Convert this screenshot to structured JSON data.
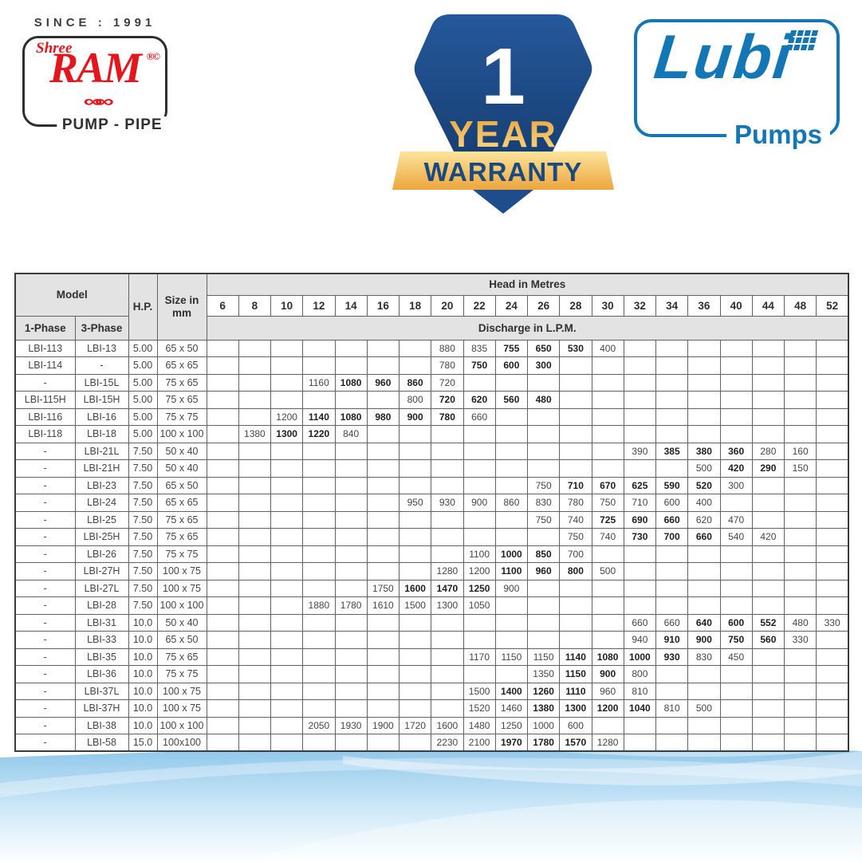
{
  "branding": {
    "since_label": "SINCE : 1991",
    "shree": "Shree",
    "ram": "RAM",
    "rc_marks": "®©",
    "pump_pipe": "PUMP - PIPE",
    "lubi": "Lubi",
    "pumps": "Pumps",
    "warranty_number": "1",
    "warranty_year": "YEAR",
    "warranty_label": "WARRANTY",
    "colors": {
      "ram_red": "#e4151d",
      "lubi_blue": "#1377b5",
      "badge_blue": "#1d4d8c",
      "gold_light": "#fbdd92",
      "gold_dark": "#eda53c",
      "warranty_text": "#1b4a7e"
    }
  },
  "table": {
    "headers": {
      "model": "Model",
      "phase1": "1-Phase",
      "phase3": "3-Phase",
      "hp": "H.P.",
      "size": "Size in mm",
      "head": "Head in Metres",
      "discharge": "Discharge in L.P.M."
    },
    "head_columns": [
      6,
      8,
      10,
      12,
      14,
      16,
      18,
      20,
      22,
      24,
      26,
      28,
      30,
      32,
      34,
      36,
      40,
      44,
      48,
      52
    ],
    "rows": [
      {
        "p1": "LBI-113",
        "p3": "LBI-13",
        "hp": "5.00",
        "size": "65 x 50",
        "d": [
          [
            20,
            "880",
            0
          ],
          [
            22,
            "835",
            0
          ],
          [
            24,
            "755",
            1
          ],
          [
            26,
            "650",
            1
          ],
          [
            28,
            "530",
            1
          ],
          [
            30,
            "400",
            0
          ]
        ]
      },
      {
        "p1": "LBI-114",
        "p3": "-",
        "hp": "5.00",
        "size": "65 x 65",
        "d": [
          [
            20,
            "780",
            0
          ],
          [
            22,
            "750",
            1
          ],
          [
            24,
            "600",
            1
          ],
          [
            26,
            "300",
            1
          ]
        ]
      },
      {
        "p1": "-",
        "p3": "LBI-15L",
        "hp": "5.00",
        "size": "75 x 65",
        "d": [
          [
            12,
            "1160",
            0
          ],
          [
            14,
            "1080",
            1
          ],
          [
            16,
            "960",
            1
          ],
          [
            18,
            "860",
            1
          ],
          [
            20,
            "720",
            0
          ]
        ]
      },
      {
        "p1": "LBI-115H",
        "p3": "LBI-15H",
        "hp": "5.00",
        "size": "75 x 65",
        "d": [
          [
            18,
            "800",
            0
          ],
          [
            20,
            "720",
            1
          ],
          [
            22,
            "620",
            1
          ],
          [
            24,
            "560",
            1
          ],
          [
            26,
            "480",
            1
          ]
        ]
      },
      {
        "p1": "LBI-116",
        "p3": "LBI-16",
        "hp": "5.00",
        "size": "75 x 75",
        "d": [
          [
            10,
            "1200",
            0
          ],
          [
            12,
            "1140",
            1
          ],
          [
            14,
            "1080",
            1
          ],
          [
            16,
            "980",
            1
          ],
          [
            18,
            "900",
            1
          ],
          [
            20,
            "780",
            1
          ],
          [
            22,
            "660",
            0
          ]
        ]
      },
      {
        "p1": "LBI-118",
        "p3": "LBI-18",
        "hp": "5.00",
        "size": "100 x 100",
        "d": [
          [
            8,
            "1380",
            0
          ],
          [
            10,
            "1300",
            1
          ],
          [
            12,
            "1220",
            1
          ],
          [
            14,
            "840",
            0
          ]
        ]
      },
      {
        "p1": "-",
        "p3": "LBI-21L",
        "hp": "7.50",
        "size": "50 x 40",
        "d": [
          [
            32,
            "390",
            0
          ],
          [
            34,
            "385",
            1
          ],
          [
            36,
            "380",
            1
          ],
          [
            40,
            "360",
            1
          ],
          [
            44,
            "280",
            0
          ],
          [
            48,
            "160",
            0
          ]
        ]
      },
      {
        "p1": "-",
        "p3": "LBI-21H",
        "hp": "7.50",
        "size": "50 x 40",
        "d": [
          [
            36,
            "500",
            0
          ],
          [
            40,
            "420",
            1
          ],
          [
            44,
            "290",
            1
          ],
          [
            48,
            "150",
            0
          ]
        ]
      },
      {
        "p1": "-",
        "p3": "LBI-23",
        "hp": "7.50",
        "size": "65 x 50",
        "d": [
          [
            26,
            "750",
            0
          ],
          [
            28,
            "710",
            1
          ],
          [
            30,
            "670",
            1
          ],
          [
            32,
            "625",
            1
          ],
          [
            34,
            "590",
            1
          ],
          [
            36,
            "520",
            1
          ],
          [
            40,
            "300",
            0
          ]
        ]
      },
      {
        "p1": "-",
        "p3": "LBI-24",
        "hp": "7.50",
        "size": "65 x 65",
        "d": [
          [
            18,
            "950",
            0
          ],
          [
            20,
            "930",
            0
          ],
          [
            22,
            "900",
            0
          ],
          [
            24,
            "860",
            0
          ],
          [
            26,
            "830",
            0
          ],
          [
            28,
            "780",
            0
          ],
          [
            30,
            "750",
            0
          ],
          [
            32,
            "710",
            0
          ],
          [
            34,
            "600",
            0
          ],
          [
            36,
            "400",
            0
          ]
        ]
      },
      {
        "p1": "-",
        "p3": "LBI-25",
        "hp": "7.50",
        "size": "75 x 65",
        "d": [
          [
            26,
            "750",
            0
          ],
          [
            28,
            "740",
            0
          ],
          [
            30,
            "725",
            1
          ],
          [
            32,
            "690",
            1
          ],
          [
            34,
            "660",
            1
          ],
          [
            36,
            "620",
            0
          ],
          [
            40,
            "470",
            0
          ]
        ]
      },
      {
        "p1": "-",
        "p3": "LBI-25H",
        "hp": "7.50",
        "size": "75 x 65",
        "d": [
          [
            28,
            "750",
            0
          ],
          [
            30,
            "740",
            0
          ],
          [
            32,
            "730",
            1
          ],
          [
            34,
            "700",
            1
          ],
          [
            36,
            "660",
            1
          ],
          [
            40,
            "540",
            0
          ],
          [
            44,
            "420",
            0
          ]
        ]
      },
      {
        "p1": "-",
        "p3": "LBI-26",
        "hp": "7.50",
        "size": "75 x 75",
        "d": [
          [
            22,
            "1100",
            0
          ],
          [
            24,
            "1000",
            1
          ],
          [
            26,
            "850",
            1
          ],
          [
            28,
            "700",
            0
          ]
        ]
      },
      {
        "p1": "-",
        "p3": "LBI-27H",
        "hp": "7.50",
        "size": "100 x 75",
        "d": [
          [
            20,
            "1280",
            0
          ],
          [
            22,
            "1200",
            0
          ],
          [
            24,
            "1100",
            1
          ],
          [
            26,
            "960",
            1
          ],
          [
            28,
            "800",
            1
          ],
          [
            30,
            "500",
            0
          ]
        ]
      },
      {
        "p1": "-",
        "p3": "LBI-27L",
        "hp": "7.50",
        "size": "100 x 75",
        "d": [
          [
            16,
            "1750",
            0
          ],
          [
            18,
            "1600",
            1
          ],
          [
            20,
            "1470",
            1
          ],
          [
            22,
            "1250",
            1
          ],
          [
            24,
            "900",
            0
          ]
        ]
      },
      {
        "p1": "-",
        "p3": "LBI-28",
        "hp": "7.50",
        "size": "100 x 100",
        "d": [
          [
            12,
            "1880",
            0
          ],
          [
            14,
            "1780",
            0
          ],
          [
            16,
            "1610",
            0
          ],
          [
            18,
            "1500",
            0
          ],
          [
            20,
            "1300",
            0
          ],
          [
            22,
            "1050",
            0
          ]
        ]
      },
      {
        "p1": "-",
        "p3": "LBI-31",
        "hp": "10.0",
        "size": "50 x 40",
        "d": [
          [
            32,
            "660",
            0
          ],
          [
            34,
            "660",
            0
          ],
          [
            36,
            "640",
            1
          ],
          [
            40,
            "600",
            1
          ],
          [
            44,
            "552",
            1
          ],
          [
            48,
            "480",
            0
          ],
          [
            52,
            "330",
            0
          ]
        ]
      },
      {
        "p1": "-",
        "p3": "LBI-33",
        "hp": "10.0",
        "size": "65 x 50",
        "d": [
          [
            32,
            "940",
            0
          ],
          [
            34,
            "910",
            1
          ],
          [
            36,
            "900",
            1
          ],
          [
            40,
            "750",
            1
          ],
          [
            44,
            "560",
            1
          ],
          [
            48,
            "330",
            0
          ]
        ]
      },
      {
        "p1": "-",
        "p3": "LBI-35",
        "hp": "10.0",
        "size": "75 x 65",
        "d": [
          [
            22,
            "1170",
            0
          ],
          [
            24,
            "1150",
            0
          ],
          [
            26,
            "1150",
            0
          ],
          [
            28,
            "1140",
            1
          ],
          [
            30,
            "1080",
            1
          ],
          [
            32,
            "1000",
            1
          ],
          [
            34,
            "930",
            1
          ],
          [
            36,
            "830",
            0
          ],
          [
            40,
            "450",
            0
          ]
        ]
      },
      {
        "p1": "-",
        "p3": "LBI-36",
        "hp": "10.0",
        "size": "75 x 75",
        "d": [
          [
            26,
            "1350",
            0
          ],
          [
            28,
            "1150",
            1
          ],
          [
            30,
            "900",
            1
          ],
          [
            32,
            "800",
            0
          ]
        ]
      },
      {
        "p1": "-",
        "p3": "LBI-37L",
        "hp": "10.0",
        "size": "100 x 75",
        "d": [
          [
            22,
            "1500",
            0
          ],
          [
            24,
            "1400",
            1
          ],
          [
            26,
            "1260",
            1
          ],
          [
            28,
            "1110",
            1
          ],
          [
            30,
            "960",
            0
          ],
          [
            32,
            "810",
            0
          ]
        ]
      },
      {
        "p1": "-",
        "p3": "LBI-37H",
        "hp": "10.0",
        "size": "100 x 75",
        "d": [
          [
            22,
            "1520",
            0
          ],
          [
            24,
            "1460",
            0
          ],
          [
            26,
            "1380",
            1
          ],
          [
            28,
            "1300",
            1
          ],
          [
            30,
            "1200",
            1
          ],
          [
            32,
            "1040",
            1
          ],
          [
            34,
            "810",
            0
          ],
          [
            36,
            "500",
            0
          ]
        ]
      },
      {
        "p1": "-",
        "p3": "LBI-38",
        "hp": "10.0",
        "size": "100 x 100",
        "d": [
          [
            12,
            "2050",
            0
          ],
          [
            14,
            "1930",
            0
          ],
          [
            16,
            "1900",
            0
          ],
          [
            18,
            "1720",
            0
          ],
          [
            20,
            "1600",
            0
          ],
          [
            22,
            "1480",
            0
          ],
          [
            24,
            "1250",
            0
          ],
          [
            26,
            "1000",
            0
          ],
          [
            28,
            "600",
            0
          ]
        ]
      },
      {
        "p1": "-",
        "p3": "LBI-58",
        "hp": "15.0",
        "size": "100x100",
        "d": [
          [
            20,
            "2230",
            0
          ],
          [
            22,
            "2100",
            0
          ],
          [
            24,
            "1970",
            1
          ],
          [
            26,
            "1780",
            1
          ],
          [
            28,
            "1570",
            1
          ],
          [
            30,
            "1280",
            0
          ]
        ]
      }
    ]
  }
}
